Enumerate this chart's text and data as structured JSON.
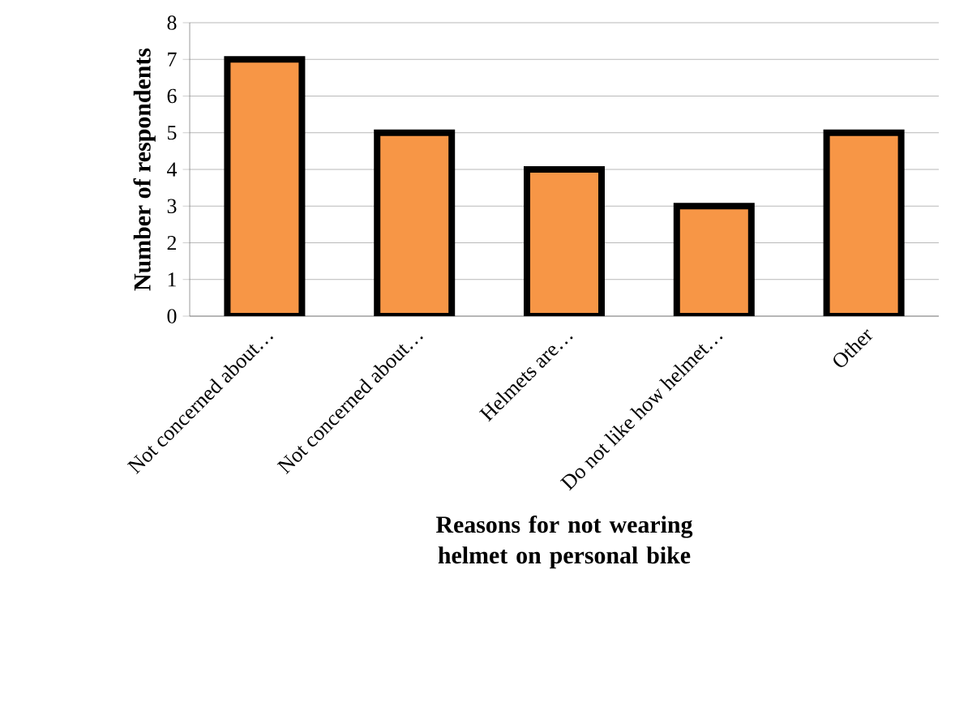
{
  "chart_data": {
    "type": "bar",
    "xlabel": "Reasons for not wearing helmet on personal bike",
    "ylabel": "Number of respondents",
    "categories": [
      "Not concerned about…",
      "Not concerned about…",
      "Helmets are…",
      "Do not like how helmet…",
      "Other"
    ],
    "values": [
      7,
      5,
      4,
      3,
      5
    ],
    "color": "#f79646",
    "ylim": [
      0,
      8
    ],
    "yticks": [
      0,
      1,
      2,
      3,
      4,
      5,
      6,
      7,
      8
    ],
    "grid": "y"
  }
}
